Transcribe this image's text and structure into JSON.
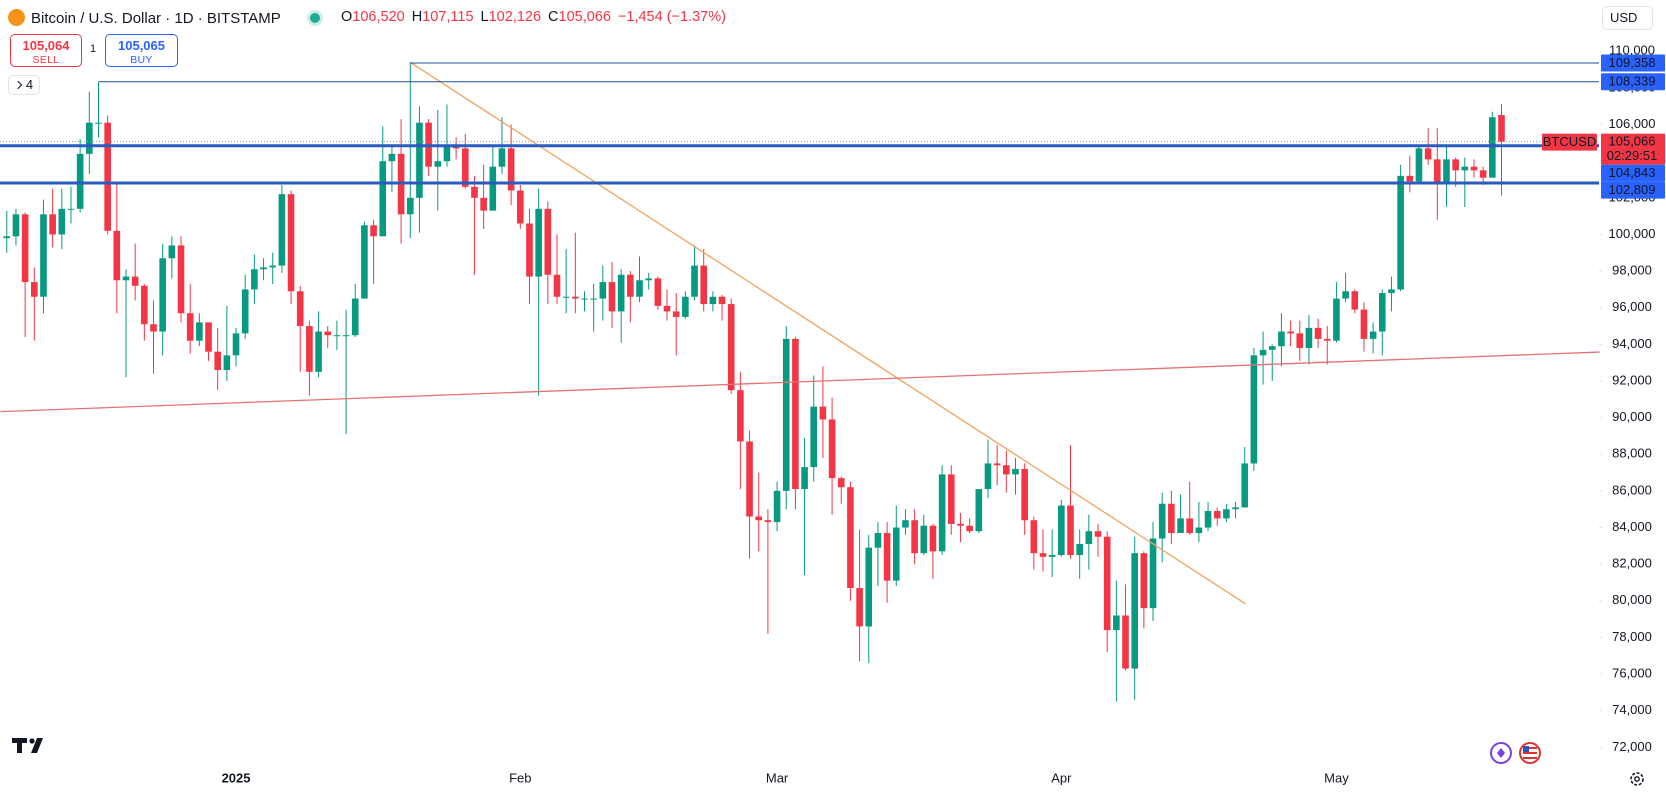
{
  "toolbar": {
    "title": "Bitcoin / U.S. Dollar · 1D · BITSTAMP",
    "ohlc": [
      {
        "key": "O",
        "label": "106,520"
      },
      {
        "key": "H",
        "label": "107,115"
      },
      {
        "key": "L",
        "label": "102,126"
      },
      {
        "key": "C",
        "label": "105,066"
      }
    ],
    "change": "−1,454 (−1.37%)",
    "sell": {
      "price": "105,064",
      "label": "SELL"
    },
    "buy": {
      "price": "105,065",
      "label": "BUY"
    },
    "quantity": "1",
    "indicators": "4",
    "currency": "USD"
  },
  "chart_data": {
    "type": "candlestick",
    "up_color": "#089981",
    "down_color": "#f23645",
    "grid": false,
    "ylim": [
      71200,
      112800
    ],
    "yticks": [
      {
        "value": 72000,
        "label": "72,000"
      },
      {
        "value": 74000,
        "label": "74,000"
      },
      {
        "value": 76000,
        "label": "76,000"
      },
      {
        "value": 78000,
        "label": "78,000"
      },
      {
        "value": 80000,
        "label": "80,000"
      },
      {
        "value": 82000,
        "label": "82,000"
      },
      {
        "value": 84000,
        "label": "84,000"
      },
      {
        "value": 86000,
        "label": "86,000"
      },
      {
        "value": 88000,
        "label": "88,000"
      },
      {
        "value": 90000,
        "label": "90,000"
      },
      {
        "value": 92000,
        "label": "92,000"
      },
      {
        "value": 94000,
        "label": "94,000"
      },
      {
        "value": 96000,
        "label": "96,000"
      },
      {
        "value": 98000,
        "label": "98,000"
      },
      {
        "value": 100000,
        "label": "100,000"
      },
      {
        "value": 102000,
        "label": "102,000"
      },
      {
        "value": 104000,
        "label": "104,000"
      },
      {
        "value": 106000,
        "label": "106,000"
      },
      {
        "value": 108000,
        "label": "108,000"
      },
      {
        "value": 110000,
        "label": "110,000"
      }
    ],
    "categories": [
      null,
      null,
      null,
      null,
      null,
      null,
      null,
      null,
      null,
      null,
      null,
      null,
      null,
      null,
      null,
      null,
      null,
      null,
      null,
      null,
      null,
      null,
      null,
      null,
      null,
      "2025",
      null,
      null,
      null,
      null,
      null,
      null,
      null,
      null,
      null,
      null,
      null,
      null,
      null,
      null,
      null,
      null,
      null,
      null,
      null,
      null,
      null,
      null,
      null,
      null,
      null,
      null,
      null,
      null,
      null,
      null,
      "Feb",
      null,
      null,
      null,
      null,
      null,
      null,
      null,
      null,
      null,
      null,
      null,
      null,
      null,
      null,
      null,
      null,
      null,
      null,
      null,
      null,
      null,
      null,
      null,
      null,
      null,
      null,
      null,
      "Mar",
      null,
      null,
      null,
      null,
      null,
      null,
      null,
      null,
      null,
      null,
      null,
      null,
      null,
      null,
      null,
      null,
      null,
      null,
      null,
      null,
      null,
      null,
      null,
      null,
      null,
      null,
      null,
      null,
      null,
      null,
      "Apr",
      null,
      null,
      null,
      null,
      null,
      null,
      null,
      null,
      null,
      null,
      null,
      null,
      null,
      null,
      null,
      null,
      null,
      null,
      null,
      null,
      null,
      null,
      null,
      null,
      null,
      null,
      null,
      null,
      null,
      "May",
      null,
      null,
      null,
      null,
      null,
      null,
      null,
      null,
      null,
      null,
      null,
      null,
      null,
      null,
      null,
      null,
      null,
      null
    ],
    "open": [
      99800,
      99900,
      101100,
      97400,
      96600,
      101100,
      100000,
      101400,
      101400,
      104400,
      106100,
      106100,
      100200,
      97500,
      97700,
      97200,
      95100,
      94700,
      98700,
      99400,
      95700,
      94200,
      95200,
      93600,
      92600,
      93400,
      94600,
      97000,
      98100,
      98200,
      98300,
      102200,
      96900,
      95000,
      92500,
      94700,
      94500,
      94500,
      94500,
      96500,
      100500,
      99900,
      104000,
      104400,
      101100,
      102000,
      106100,
      103700,
      104000,
      104800,
      104700,
      102600,
      102000,
      101300,
      103700,
      104700,
      102400,
      100600,
      97700,
      101400,
      97800,
      96600,
      96600,
      96500,
      96500,
      96500,
      97400,
      95800,
      97800,
      96600,
      97500,
      97600,
      96100,
      95800,
      95500,
      96600,
      98300,
      96200,
      96600,
      96200,
      91500,
      88700,
      84600,
      84400,
      84300,
      86000,
      94300,
      86100,
      87300,
      90600,
      89900,
      86700,
      86200,
      80700,
      78600,
      82900,
      83700,
      81100,
      84000,
      84400,
      82600,
      84100,
      82700,
      86900,
      84200,
      84100,
      83800,
      86100,
      87500,
      87400,
      86900,
      87200,
      84400,
      82600,
      82400,
      82500,
      85200,
      82500,
      83100,
      83800,
      83500,
      78400,
      79200,
      76300,
      82600,
      79600,
      83400,
      85300,
      83700,
      84500,
      83700,
      84000,
      84900,
      84500,
      85000,
      85100,
      87500,
      93400,
      93700,
      93900,
      94700,
      94600,
      93800,
      94900,
      94300,
      94200,
      96500,
      96900,
      95900,
      94300,
      94700,
      96800,
      97000,
      103200,
      102900,
      104700,
      104100,
      102800,
      104100,
      103500,
      103700,
      103500,
      103100,
      106520
    ],
    "high": [
      101300,
      101400,
      101200,
      98200,
      101900,
      102500,
      102500,
      102600,
      105200,
      107800,
      108300,
      106500,
      102800,
      98100,
      99500,
      97300,
      96400,
      99500,
      99900,
      99900,
      97300,
      95700,
      95200,
      94900,
      96100,
      94900,
      97800,
      98900,
      98700,
      99000,
      102700,
      102400,
      97200,
      95300,
      95800,
      95000,
      95300,
      95900,
      97300,
      100700,
      100800,
      105900,
      104900,
      106300,
      109400,
      107000,
      106300,
      106800,
      107100,
      105300,
      105500,
      103200,
      103800,
      104800,
      106400,
      106000,
      102700,
      101400,
      102500,
      101800,
      100000,
      99200,
      100100,
      96900,
      97300,
      98300,
      98500,
      98100,
      98000,
      98800,
      97900,
      97700,
      97000,
      96800,
      96900,
      99400,
      99200,
      96900,
      96700,
      96500,
      92500,
      89300,
      87000,
      85000,
      86500,
      95000,
      94400,
      88900,
      92300,
      92800,
      91100,
      86800,
      86500,
      83900,
      83600,
      84300,
      84300,
      85200,
      85000,
      85000,
      84700,
      84200,
      87400,
      87400,
      84800,
      84500,
      86100,
      88800,
      88500,
      88200,
      87800,
      87500,
      84600,
      83900,
      83900,
      85500,
      88500,
      83900,
      84700,
      84200,
      83800,
      81100,
      80900,
      83500,
      82700,
      84300,
      85900,
      86000,
      85800,
      86500,
      85400,
      85400,
      85100,
      85300,
      85400,
      88400,
      93800,
      94700,
      94000,
      95700,
      95300,
      95300,
      95600,
      95400,
      95000,
      97400,
      97900,
      97000,
      96300,
      95200,
      97000,
      97700,
      103800,
      104300,
      104900,
      105800,
      105800,
      104900,
      104200,
      104200,
      104100,
      103700,
      106700,
      107115
    ],
    "low": [
      99000,
      99400,
      94400,
      94200,
      95700,
      99300,
      99200,
      100600,
      101200,
      103300,
      105300,
      100000,
      95700,
      92200,
      96400,
      94200,
      92400,
      93400,
      97600,
      95200,
      93500,
      93900,
      93100,
      91500,
      92000,
      92800,
      94300,
      96200,
      97500,
      97300,
      97900,
      96200,
      92500,
      91200,
      92200,
      93800,
      93700,
      89100,
      94400,
      96500,
      97300,
      99900,
      102300,
      99500,
      99800,
      100100,
      103200,
      101300,
      103700,
      104100,
      102500,
      97800,
      100300,
      101300,
      103300,
      101600,
      100300,
      96200,
      91200,
      96200,
      96200,
      95700,
      95700,
      95800,
      94700,
      95300,
      94900,
      94100,
      95200,
      96300,
      97000,
      95900,
      95300,
      93400,
      95400,
      96400,
      95800,
      95800,
      95300,
      91300,
      86100,
      82300,
      82700,
      78200,
      83800,
      85000,
      85000,
      81400,
      86500,
      87800,
      84700,
      85300,
      80000,
      76700,
      76600,
      80800,
      79900,
      80800,
      83600,
      82000,
      82500,
      81200,
      82500,
      83600,
      83200,
      83700,
      83700,
      85600,
      86300,
      85900,
      85800,
      83600,
      81700,
      81600,
      81300,
      82400,
      82300,
      81200,
      81700,
      82400,
      77200,
      74500,
      76200,
      74600,
      78500,
      78900,
      82100,
      83100,
      83700,
      83600,
      83200,
      83800,
      84100,
      84300,
      84500,
      85100,
      87100,
      91800,
      92000,
      92800,
      93900,
      93100,
      92900,
      93800,
      92900,
      94100,
      96300,
      95700,
      93600,
      93500,
      93400,
      95800,
      96900,
      102300,
      102800,
      103800,
      100800,
      101500,
      102600,
      101500,
      103100,
      102700,
      103100,
      102126
    ],
    "close": [
      99900,
      101100,
      97400,
      96600,
      101100,
      100000,
      101400,
      101400,
      104400,
      106100,
      106100,
      100200,
      97500,
      97700,
      97200,
      95100,
      94700,
      98700,
      99400,
      95700,
      94200,
      95200,
      93600,
      92600,
      93400,
      94600,
      97000,
      98100,
      98200,
      98300,
      102200,
      96900,
      95000,
      92500,
      94700,
      94500,
      94500,
      94500,
      96500,
      100500,
      99900,
      104000,
      104400,
      101100,
      102000,
      106100,
      103700,
      104000,
      104800,
      104700,
      102600,
      102000,
      101300,
      103700,
      104700,
      102400,
      100600,
      97700,
      101400,
      97800,
      96600,
      96600,
      96500,
      96500,
      96500,
      97400,
      95800,
      97800,
      96600,
      97500,
      97600,
      96100,
      95800,
      95500,
      96600,
      98300,
      96200,
      96600,
      96200,
      91500,
      88700,
      84600,
      84400,
      84300,
      86000,
      94300,
      86100,
      87300,
      90600,
      89900,
      86700,
      86200,
      80700,
      78600,
      82900,
      83700,
      81100,
      84000,
      84400,
      82600,
      84100,
      82700,
      86900,
      84200,
      84100,
      83800,
      86100,
      87500,
      87400,
      86900,
      87200,
      84400,
      82600,
      82400,
      82500,
      85200,
      82500,
      83100,
      83800,
      83500,
      78400,
      79200,
      76300,
      82600,
      79600,
      83400,
      85300,
      83700,
      84500,
      83700,
      84000,
      84900,
      84500,
      85000,
      85100,
      87500,
      93400,
      93700,
      93900,
      94700,
      94600,
      93800,
      94900,
      94300,
      94200,
      96500,
      96900,
      95900,
      94300,
      94700,
      96800,
      97000,
      103200,
      102900,
      104700,
      104100,
      102800,
      104100,
      103500,
      103700,
      103500,
      103100,
      106400,
      105066
    ],
    "levels": [
      {
        "value": 109358,
        "label": "109,358",
        "start": 44
      },
      {
        "value": 108339,
        "label": "108,339",
        "start": 10
      },
      {
        "value": 104843,
        "label": "104,843"
      },
      {
        "value": 102809,
        "label": "102,809"
      }
    ],
    "level_color": "#2962ff",
    "price_tag": {
      "symbol": "BTCUSD",
      "value": 105066,
      "label": "105,066",
      "countdown": "02:29:51"
    },
    "drawings": [
      {
        "color": "#f0a35e",
        "x": [
          44,
          135.1
        ],
        "y": [
          109400,
          79830
        ]
      },
      {
        "color": "#e57373",
        "x": [
          -0.7,
          173.7
        ],
        "y": [
          90330,
          93580
        ]
      }
    ]
  }
}
